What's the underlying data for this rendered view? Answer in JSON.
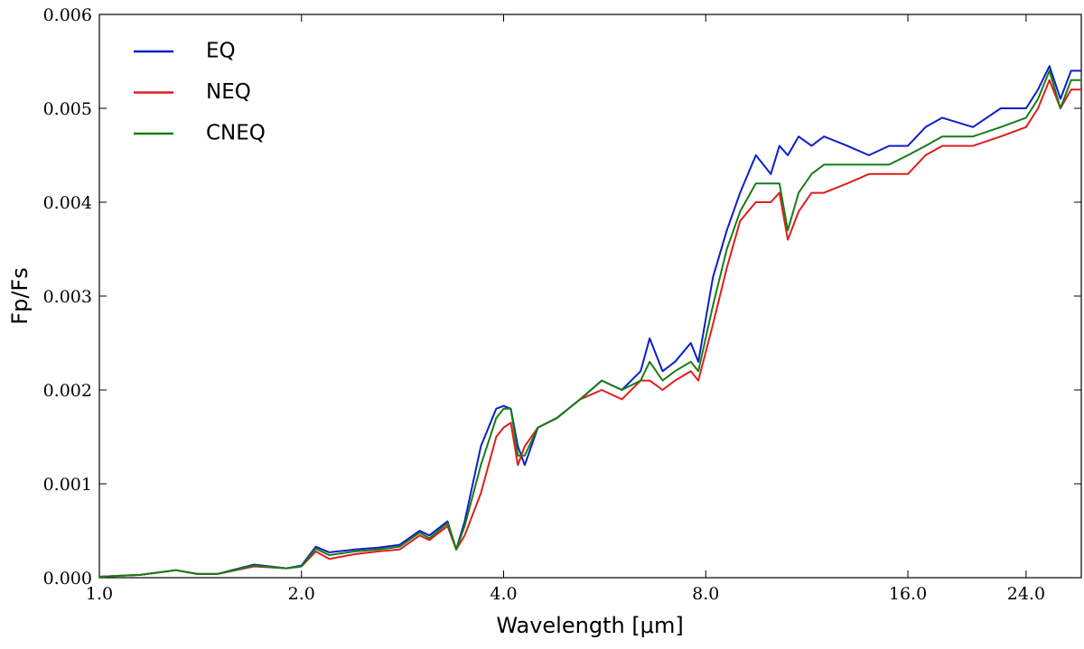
{
  "chart_data": {
    "type": "line",
    "xlabel": "Wavelength [μm]",
    "ylabel": "Fp/Fs",
    "xscale": "log",
    "xlim": [
      1.0,
      29
    ],
    "ylim": [
      0,
      0.006
    ],
    "xticks": [
      {
        "value": 1,
        "label": "1.0"
      },
      {
        "value": 2,
        "label": "2.0"
      },
      {
        "value": 4,
        "label": "4.0"
      },
      {
        "value": 8,
        "label": "8.0"
      },
      {
        "value": 16,
        "label": "16.0"
      },
      {
        "value": 24,
        "label": "24.0"
      }
    ],
    "yticks": [
      {
        "value": 0,
        "label": "0.000"
      },
      {
        "value": 0.001,
        "label": "0.001"
      },
      {
        "value": 0.002,
        "label": "0.002"
      },
      {
        "value": 0.003,
        "label": "0.003"
      },
      {
        "value": 0.004,
        "label": "0.004"
      },
      {
        "value": 0.005,
        "label": "0.005"
      },
      {
        "value": 0.006,
        "label": "0.006"
      }
    ],
    "legend": "upper left",
    "x": [
      1.0,
      1.15,
      1.3,
      1.4,
      1.5,
      1.7,
      1.9,
      2.0,
      2.1,
      2.2,
      2.4,
      2.6,
      2.8,
      3.0,
      3.1,
      3.3,
      3.4,
      3.5,
      3.7,
      3.9,
      4.0,
      4.1,
      4.2,
      4.3,
      4.5,
      4.8,
      5.2,
      5.6,
      6.0,
      6.4,
      6.6,
      6.9,
      7.2,
      7.6,
      7.8,
      8.2,
      8.6,
      9.0,
      9.5,
      10.0,
      10.3,
      10.6,
      11.0,
      11.5,
      12,
      13,
      14,
      15,
      16,
      17,
      18,
      20,
      22,
      24,
      25,
      26,
      27,
      28,
      29
    ],
    "series": [
      {
        "name": "EQ",
        "color": "#0b1fc9",
        "values": [
          1e-05,
          3e-05,
          8e-05,
          4e-05,
          4e-05,
          0.00014,
          0.0001,
          0.00013,
          0.00033,
          0.00027,
          0.0003,
          0.00032,
          0.00035,
          0.0005,
          0.00045,
          0.0006,
          0.0003,
          0.0006,
          0.0014,
          0.0018,
          0.00183,
          0.0018,
          0.0014,
          0.0012,
          0.0016,
          0.0017,
          0.0019,
          0.0021,
          0.002,
          0.0022,
          0.00255,
          0.0022,
          0.0023,
          0.0025,
          0.0023,
          0.0032,
          0.0037,
          0.0041,
          0.0045,
          0.0043,
          0.0046,
          0.0045,
          0.0047,
          0.0046,
          0.0047,
          0.0046,
          0.0045,
          0.0046,
          0.0046,
          0.0048,
          0.0049,
          0.0048,
          0.005,
          0.005,
          0.0052,
          0.00545,
          0.0051,
          0.0054,
          0.0054
        ]
      },
      {
        "name": "NEQ",
        "color": "#e01d1d",
        "values": [
          1e-05,
          3e-05,
          8e-05,
          4e-05,
          4e-05,
          0.00012,
          0.0001,
          0.00012,
          0.00028,
          0.0002,
          0.00025,
          0.00028,
          0.0003,
          0.00045,
          0.0004,
          0.00055,
          0.0003,
          0.00045,
          0.0009,
          0.0015,
          0.0016,
          0.00165,
          0.0012,
          0.0014,
          0.0016,
          0.0017,
          0.0019,
          0.002,
          0.0019,
          0.0021,
          0.0021,
          0.002,
          0.0021,
          0.0022,
          0.0021,
          0.0027,
          0.0033,
          0.0038,
          0.004,
          0.004,
          0.0041,
          0.0036,
          0.0039,
          0.0041,
          0.0041,
          0.0042,
          0.0043,
          0.0043,
          0.0043,
          0.0045,
          0.0046,
          0.0046,
          0.0047,
          0.0048,
          0.005,
          0.0053,
          0.005,
          0.0052,
          0.0052
        ]
      },
      {
        "name": "CNEQ",
        "color": "#177d17",
        "values": [
          1e-05,
          3e-05,
          8e-05,
          4e-05,
          4e-05,
          0.00013,
          0.0001,
          0.00012,
          0.00031,
          0.00024,
          0.00028,
          0.0003,
          0.00033,
          0.00048,
          0.00042,
          0.00058,
          0.0003,
          0.00055,
          0.0012,
          0.0017,
          0.0018,
          0.0018,
          0.0013,
          0.0013,
          0.0016,
          0.0017,
          0.0019,
          0.0021,
          0.002,
          0.0021,
          0.0023,
          0.0021,
          0.0022,
          0.0023,
          0.0022,
          0.0029,
          0.0035,
          0.0039,
          0.0042,
          0.0042,
          0.0042,
          0.0037,
          0.0041,
          0.0043,
          0.0044,
          0.0044,
          0.0044,
          0.0044,
          0.0045,
          0.0046,
          0.0047,
          0.0047,
          0.0048,
          0.0049,
          0.0051,
          0.0054,
          0.005,
          0.0053,
          0.0053
        ]
      }
    ]
  }
}
